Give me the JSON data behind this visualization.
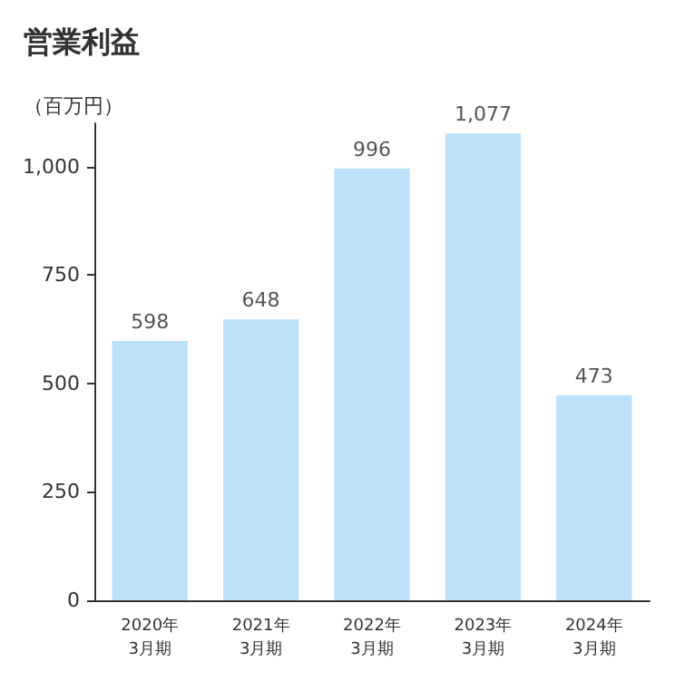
{
  "chart_data": {
    "type": "bar",
    "title": "営業利益",
    "ylabel": "（百万円）",
    "categories": [
      "2020年\n3月期",
      "2021年\n3月期",
      "2022年\n3月期",
      "2023年\n3月期",
      "2024年\n3月期"
    ],
    "values": [
      598,
      648,
      996,
      1077,
      473
    ],
    "value_labels": [
      "598",
      "648",
      "996",
      "1,077",
      "473"
    ],
    "color": "#bde1f8",
    "ylim": [
      0,
      1100
    ],
    "yticks": [
      0,
      250,
      500,
      750,
      {
        "value": 1000,
        "label": "1,000"
      }
    ],
    "grid": false
  }
}
